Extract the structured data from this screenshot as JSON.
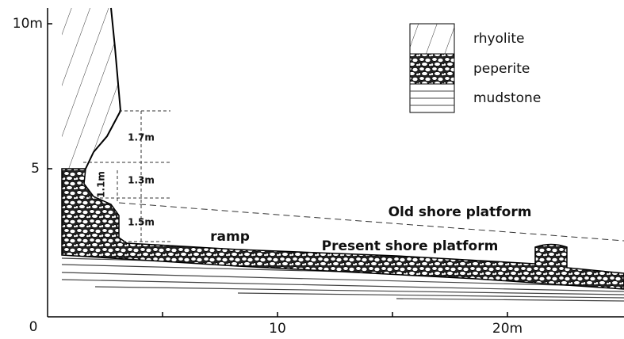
{
  "axes": {
    "y_ticks": [
      "10m",
      "5"
    ],
    "x_ticks": [
      "0",
      "10",
      "20m"
    ]
  },
  "legend": [
    "rhyolite",
    "peperite",
    "mudstone"
  ],
  "measurements": [
    "1.7m",
    "1.3m",
    "1.1m",
    "1.5m"
  ],
  "labels": {
    "ramp": "ramp",
    "present": "Present shore platform",
    "old": "Old shore platform"
  }
}
